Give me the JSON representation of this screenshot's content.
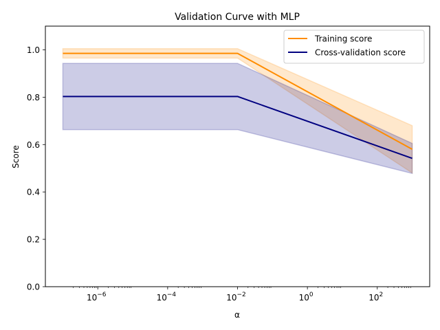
{
  "chart_data": {
    "type": "line",
    "title": "Validation Curve with MLP",
    "xlabel": "α",
    "ylabel": "Score",
    "xscale": "log",
    "xlim_exp": [
      -7.5,
      3.5
    ],
    "ylim": [
      0.0,
      1.1
    ],
    "grid": false,
    "legend_position": "top-right",
    "x": [
      1e-07,
      0.01,
      1000
    ],
    "xticks": [
      {
        "base": "10",
        "exp": "−6",
        "value": 1e-06
      },
      {
        "base": "10",
        "exp": "−4",
        "value": 0.0001
      },
      {
        "base": "10",
        "exp": "−2",
        "value": 0.01
      },
      {
        "base": "10",
        "exp": "0",
        "value": 1
      },
      {
        "base": "10",
        "exp": "2",
        "value": 100
      }
    ],
    "yticks": [
      "0.0",
      "0.2",
      "0.4",
      "0.6",
      "0.8",
      "1.0"
    ],
    "series": [
      {
        "name": "Training score",
        "color": "#ff8c00",
        "mean": [
          0.985,
          0.985,
          0.58
        ],
        "upper": [
          1.005,
          1.005,
          0.68
        ],
        "lower": [
          0.965,
          0.965,
          0.48
        ]
      },
      {
        "name": "Cross-validation score",
        "color": "#000080",
        "mean": [
          0.803,
          0.803,
          0.542
        ],
        "upper": [
          0.943,
          0.943,
          0.605
        ],
        "lower": [
          0.663,
          0.663,
          0.478
        ]
      }
    ]
  }
}
